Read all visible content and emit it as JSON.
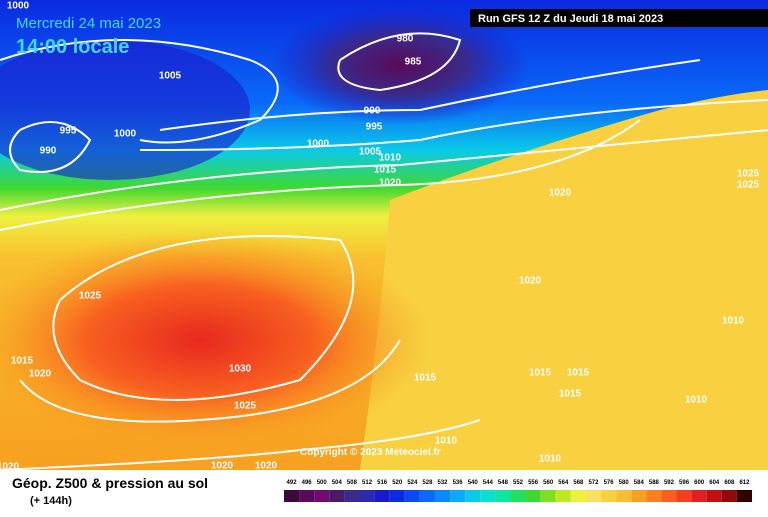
{
  "header": {
    "date": "Mercredi 24 mai 2023",
    "time": "14:00 locale",
    "run": "Run GFS 12 Z du Jeudi 18 mai 2023"
  },
  "isobar_labels": [
    "1000",
    "1005",
    "995",
    "1000",
    "990",
    "980",
    "985",
    "990",
    "995",
    "1000",
    "1005",
    "1010",
    "1015",
    "1020",
    "1020",
    "1025",
    "1025",
    "1025",
    "1020",
    "1010",
    "1015",
    "1020",
    "1030",
    "1015",
    "1015",
    "1015",
    "1015",
    "1025",
    "1010",
    "1010",
    "1010",
    "1020",
    "1020",
    "1020"
  ],
  "copyright": "Copyright © 2023 Meteociel.fr",
  "footer": {
    "title": "Géop. Z500 & pression au sol",
    "subtitle": "(+ 144h)"
  },
  "scale": {
    "labels": [
      492,
      496,
      500,
      504,
      508,
      512,
      516,
      520,
      524,
      528,
      532,
      536,
      540,
      544,
      548,
      552,
      556,
      560,
      564,
      568,
      572,
      576,
      580,
      584,
      588,
      592,
      596,
      600,
      604,
      608,
      612
    ],
    "colors": [
      "#3a0a3a",
      "#5a0a5a",
      "#700a70",
      "#4a1a6a",
      "#3a2a8a",
      "#2a2aaa",
      "#1a1acc",
      "#0a2ae0",
      "#0a4af0",
      "#0a6af8",
      "#0a8afa",
      "#0aaafa",
      "#0acae8",
      "#0ae0d0",
      "#0ae8a0",
      "#20e060",
      "#40d830",
      "#80e020",
      "#c0e820",
      "#f0f040",
      "#f8e060",
      "#f8d040",
      "#f8c030",
      "#f8a020",
      "#f88020",
      "#f86020",
      "#f04020",
      "#e02020",
      "#c01010",
      "#900a0a",
      "#300000"
    ]
  }
}
